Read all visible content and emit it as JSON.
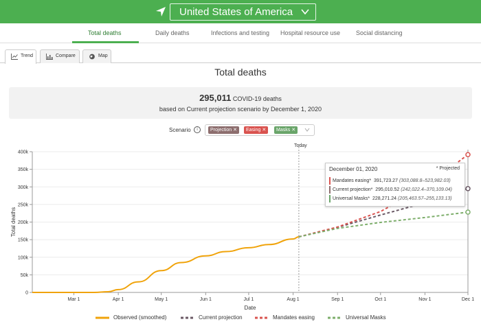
{
  "header": {
    "location_icon": "location-arrow-icon",
    "country": "United States of America",
    "dropdown_icon": "chevron-down-icon"
  },
  "nav": {
    "tabs": [
      "Total deaths",
      "Daily deaths",
      "Infections and testing",
      "Hospital resource use",
      "Social distancing"
    ],
    "active": "Total deaths"
  },
  "subtabs": [
    {
      "label": "Trend",
      "icon": "line-chart-icon"
    },
    {
      "label": "Compare",
      "icon": "bar-chart-icon"
    },
    {
      "label": "Map",
      "icon": "globe-icon"
    }
  ],
  "page_title": "Total deaths",
  "summary": {
    "count": "295,011",
    "count_suffix": "COVID-19 deaths",
    "subtitle": "based on Current projection scenario by December 1, 2020"
  },
  "scenario": {
    "label": "Scenario",
    "info_icon": "info-circle-icon",
    "chips": [
      {
        "label": "Projection",
        "color": "#8d6e6e"
      },
      {
        "label": "Easing",
        "color": "#d9534f"
      },
      {
        "label": "Masks",
        "color": "#6aa56a"
      }
    ]
  },
  "today_label": "Today",
  "tooltip": {
    "date": "December 01, 2020",
    "projected_note": "* Projected",
    "rows": [
      {
        "name": "Mandates easing*",
        "value": "391,723.27",
        "ci": "(303,088.8–523,982.03)",
        "color": "#d9534f"
      },
      {
        "name": "Current projection*",
        "value": "295,010.52",
        "ci": "(242,022.4–370,109.04)",
        "color": "#8d6e6e"
      },
      {
        "name": "Universal Masks*",
        "value": "228,271.24",
        "ci": "(205,463.57–255,133.13)",
        "color": "#6aa56a"
      }
    ]
  },
  "colors": {
    "observed": "#f0a30a",
    "current": "#6b5a66",
    "easing": "#d9534f",
    "masks": "#7dae6b",
    "header": "#4caf50"
  },
  "chart_data": {
    "type": "line",
    "xlabel": "Date",
    "ylabel": "Total deaths",
    "ylim": [
      0,
      400000
    ],
    "yticks": [
      "0",
      "50k",
      "100k",
      "150k",
      "200k",
      "250k",
      "300k",
      "350k",
      "400k"
    ],
    "xticks": [
      "Mar 1",
      "Apr 1",
      "May 1",
      "Jun 1",
      "Jul 1",
      "Aug 1",
      "Sep 1",
      "Oct 1",
      "Nov 1",
      "Dec 1"
    ],
    "grid": true,
    "legend_position": "bottom",
    "series": [
      {
        "name": "Observed (smoothed)",
        "style": "solid",
        "points": [
          [
            "2020-02-01",
            0
          ],
          [
            "2020-03-01",
            0
          ],
          [
            "2020-03-15",
            100
          ],
          [
            "2020-03-25",
            2000
          ],
          [
            "2020-04-01",
            8000
          ],
          [
            "2020-04-15",
            30000
          ],
          [
            "2020-05-01",
            62000
          ],
          [
            "2020-05-15",
            85000
          ],
          [
            "2020-06-01",
            104000
          ],
          [
            "2020-06-15",
            116000
          ],
          [
            "2020-07-01",
            127000
          ],
          [
            "2020-07-15",
            136000
          ],
          [
            "2020-08-01",
            152000
          ],
          [
            "2020-08-05",
            158000
          ]
        ]
      },
      {
        "name": "Current projection",
        "style": "dashed",
        "points": [
          [
            "2020-08-05",
            158000
          ],
          [
            "2020-09-01",
            185000
          ],
          [
            "2020-10-01",
            220000
          ],
          [
            "2020-11-01",
            255000
          ],
          [
            "2020-12-01",
            295010.52
          ]
        ]
      },
      {
        "name": "Mandates easing",
        "style": "dashed",
        "points": [
          [
            "2020-08-05",
            158000
          ],
          [
            "2020-09-01",
            186000
          ],
          [
            "2020-10-01",
            230000
          ],
          [
            "2020-11-01",
            300000
          ],
          [
            "2020-12-01",
            391723.27
          ]
        ]
      },
      {
        "name": "Universal Masks",
        "style": "dashed",
        "points": [
          [
            "2020-08-05",
            158000
          ],
          [
            "2020-09-01",
            182000
          ],
          [
            "2020-10-01",
            199000
          ],
          [
            "2020-11-01",
            213000
          ],
          [
            "2020-12-01",
            228271.24
          ]
        ]
      }
    ],
    "today": "2020-08-05"
  }
}
